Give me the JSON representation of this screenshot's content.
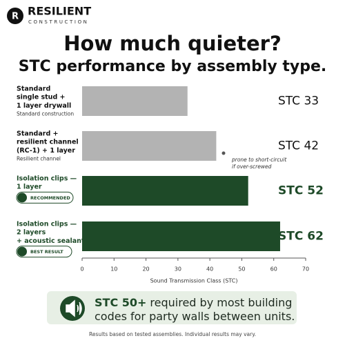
{
  "header": {
    "brand": "RESILIENT",
    "tagline": "CONSTRUCTION"
  },
  "chart_data": {
    "type": "bar",
    "orientation": "horizontal",
    "title": "How much quieter?",
    "subtitle": "STC performance by assembly type.",
    "categories": [
      [
        "Standard",
        "single stud +",
        "1 layer drywall"
      ],
      [
        "Standard +",
        "resilient channel",
        "(RC-1) + 1 layer"
      ],
      [
        "Isolation clips —",
        "1 layer"
      ],
      [
        "Isolation clips —",
        "2 layers",
        "+ acoustic sealant"
      ]
    ],
    "notes": [
      "Standard construction",
      "Resilient channel",
      null,
      null
    ],
    "badges": [
      null,
      null,
      "RECOMMENDED",
      "BEST RESULT"
    ],
    "values": [
      33,
      42,
      52,
      62
    ],
    "value_labels": [
      "STC 33",
      "STC 42",
      "STC 52",
      "STC 62"
    ],
    "colors": [
      "#b3b3b3",
      "#b3b3b3",
      "#1e4a28",
      "#1e4a28"
    ],
    "xlim": [
      0,
      70
    ],
    "xticks": [
      0,
      10,
      20,
      30,
      40,
      50,
      60,
      70
    ],
    "xlabel": "Sound Transmission Class (STC)",
    "annotation": [
      "prone to short-circuit",
      "if over-screwed"
    ]
  },
  "callout": {
    "emphasis": "STC 50+",
    "lines": [
      "required by most building",
      "codes for party walls between units."
    ]
  },
  "footnote": "Results based on tested assemblies. Individual results may vary."
}
